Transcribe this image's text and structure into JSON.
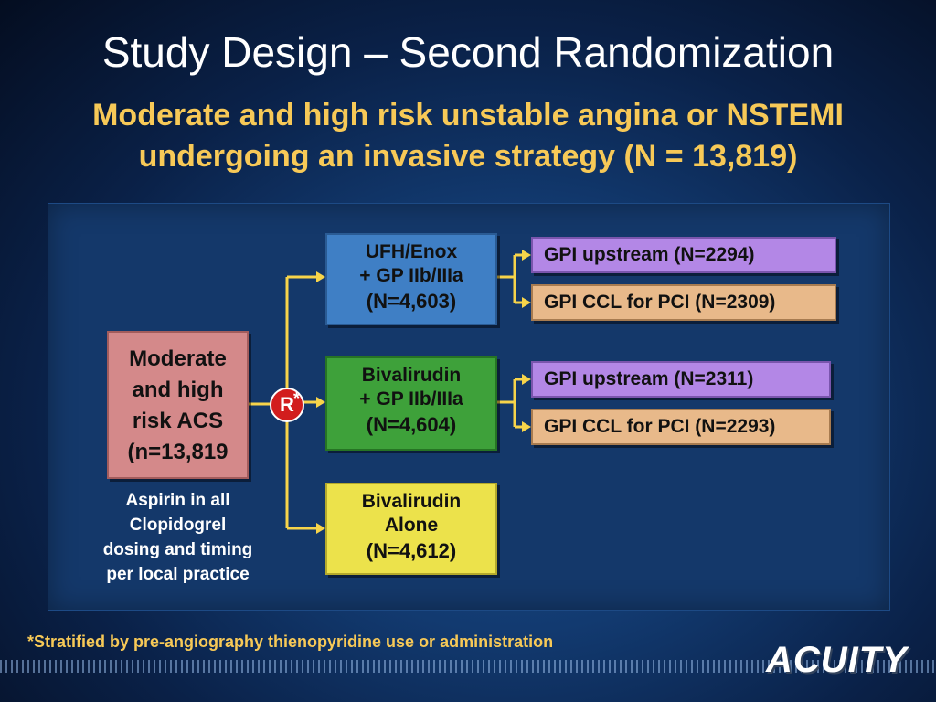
{
  "title": "Study Design – Second Randomization",
  "subtitle_line1": "Moderate and high risk unstable angina or NSTEMI",
  "subtitle_line2": "undergoing an invasive strategy (N = 13,819)",
  "root": {
    "lines": [
      "Moderate",
      "and high",
      "risk ACS",
      "(n=13,819"
    ]
  },
  "randomization": {
    "letter": "R",
    "marker": "*"
  },
  "arms": [
    {
      "line1": "UFH/Enox",
      "line2": "+ GP IIb/IIIa",
      "n": "(N=4,603)",
      "color": "#3f7fc5"
    },
    {
      "line1": "Bivalirudin",
      "line2": "+ GP IIb/IIIa",
      "n": "(N=4,604)",
      "color": "#3ea13a"
    },
    {
      "line1": "Bivalirudin",
      "line2": "Alone",
      "n": "(N=4,612)",
      "color": "#ece24b"
    }
  ],
  "subgroups": [
    {
      "label": "GPI upstream (N=2294)",
      "color": "#b387e6"
    },
    {
      "label": "GPI CCL for PCI (N=2309)",
      "color": "#e8b98a"
    },
    {
      "label": "GPI upstream (N=2311)",
      "color": "#b387e6"
    },
    {
      "label": "GPI CCL for PCI (N=2293)",
      "color": "#e8b98a"
    }
  ],
  "background_therapy": [
    "Aspirin in all",
    "Clopidogrel",
    "dosing and timing",
    "per local practice"
  ],
  "footnote": "*Stratified by pre-angiography thienopyridine use or administration",
  "logo": "ACUITY",
  "colors": {
    "connector": "#f7d44a",
    "title": "#ffffff",
    "subtitle": "#f7c957"
  }
}
